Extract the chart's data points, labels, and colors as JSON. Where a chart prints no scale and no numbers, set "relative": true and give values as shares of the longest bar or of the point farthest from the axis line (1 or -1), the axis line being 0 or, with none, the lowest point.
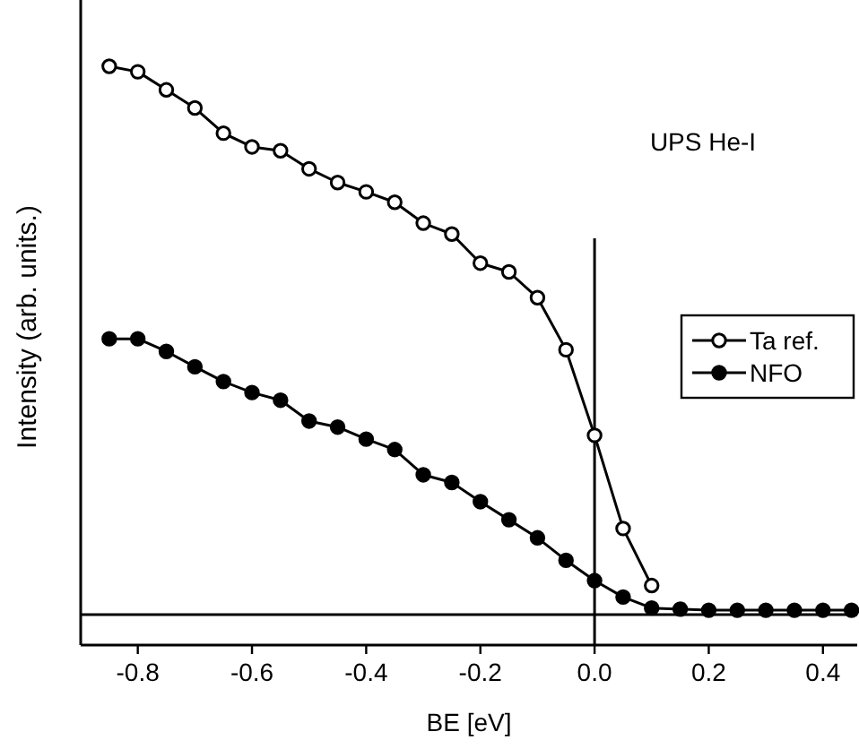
{
  "chart_data": {
    "type": "line",
    "xlabel": "BE [eV]",
    "ylabel": "Intensity (arb. units.)",
    "relative": true,
    "x": [
      -0.85,
      -0.8,
      -0.75,
      -0.7,
      -0.65,
      -0.6,
      -0.55,
      -0.5,
      -0.45,
      -0.4,
      -0.35,
      -0.3,
      -0.25,
      -0.2,
      -0.15,
      -0.1,
      -0.05,
      0,
      0.05,
      0.1,
      0.15,
      0.2,
      0.25,
      0.3,
      0.35,
      0.4,
      0.45
    ],
    "series": [
      {
        "name": "Ta ref.",
        "color": "#000000",
        "values": [
          1,
          0.99,
          0.957,
          0.924,
          0.878,
          0.853,
          0.846,
          0.813,
          0.788,
          0.771,
          0.752,
          0.714,
          0.694,
          0.641,
          0.625,
          0.578,
          0.483,
          0.327,
          0.157,
          0.053,
          null,
          null,
          null,
          null,
          null,
          null,
          null
        ]
      },
      {
        "name": "NFO",
        "color": "#000000",
        "values": [
          0.503,
          0.503,
          0.48,
          0.452,
          0.425,
          0.405,
          0.391,
          0.353,
          0.342,
          0.32,
          0.301,
          0.255,
          0.241,
          0.206,
          0.173,
          0.14,
          0.099,
          0.062,
          0.032,
          0.012,
          0.01,
          0.008,
          0.008,
          0.008,
          0.008,
          0.008,
          0.008
        ]
      }
    ],
    "xlim": [
      -0.9,
      0.46
    ],
    "xticks": [
      -0.8,
      -0.6,
      -0.4,
      -0.2,
      {
        "value": 0,
        "label": "0.0"
      },
      0.2,
      0.4
    ],
    "ref_lines": [
      {
        "axis": "x",
        "value": 0
      }
    ],
    "annotations": [
      "UPS He-I"
    ],
    "legend": "right",
    "marker": "circle",
    "line_style": "solid",
    "grid": false
  }
}
